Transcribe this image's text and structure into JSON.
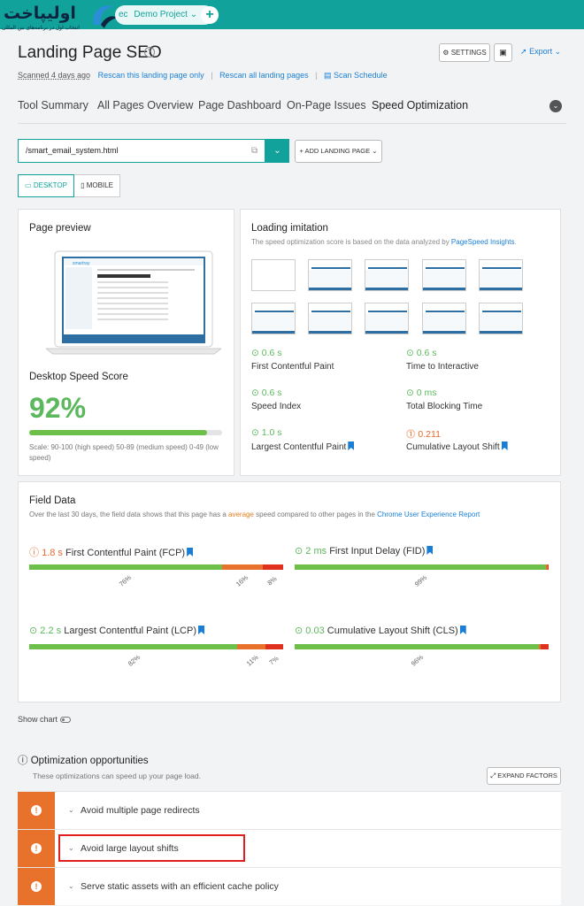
{
  "app": {
    "logo_text": "اولیپاخت",
    "logo_tagline": "انتخاب اول در برنامه‌های بین المللی",
    "project_label": "Demo Project",
    "project_prefix": "ec",
    "add_label": "+"
  },
  "header": {
    "title": "Landing Page SEO",
    "settings_label": "SETTINGS",
    "export_label": "Export",
    "scanned": "Scanned 4 days ago",
    "rescan_this": "Rescan this landing page only",
    "rescan_all": "Rescan all landing pages",
    "scan_schedule": "Scan Schedule"
  },
  "tabs": [
    {
      "label": "Tool Summary",
      "active": false
    },
    {
      "label": "All Pages Overview",
      "active": false
    },
    {
      "label": "Page Dashboard",
      "active": false
    },
    {
      "label": "On-Page Issues",
      "active": false
    },
    {
      "label": "Speed Optimization",
      "active": true
    }
  ],
  "toolbar": {
    "url": "/smart_email_system.html",
    "add_landing_page": "+ ADD LANDING PAGE",
    "desktop": "DESKTOP",
    "mobile": "MOBILE"
  },
  "page_preview": {
    "title": "Page preview",
    "score_label": "Desktop Speed Score",
    "score_value": "92%",
    "score_fraction": 0.92,
    "scale_text": "Scale: 90-100 (high speed) 50-89 (medium speed) 0-49 (low speed)"
  },
  "loading_imitation": {
    "title": "Loading imitation",
    "subtitle": "The speed optimization score is based on the data analyzed by ",
    "subtitle_link": "PageSpeed Insights",
    "subtitle_end": ".",
    "metrics": [
      {
        "value": "0.6 s",
        "label": "First Contentful Paint",
        "status": "good",
        "bookmark": false
      },
      {
        "value": "0.6 s",
        "label": "Time to Interactive",
        "status": "good",
        "bookmark": false
      },
      {
        "value": "0.6 s",
        "label": "Speed Index",
        "status": "good",
        "bookmark": false
      },
      {
        "value": "0 ms",
        "label": "Total Blocking Time",
        "status": "good",
        "bookmark": false
      },
      {
        "value": "1.0 s",
        "label": "Largest Contentful Paint",
        "status": "good",
        "bookmark": true
      },
      {
        "value": "0.211",
        "label": "Cumulative Layout Shift",
        "status": "warn",
        "bookmark": true
      }
    ]
  },
  "field_data": {
    "title": "Field Data",
    "subtitle_pre": "Over the last 30 days, the field data shows that this page has a ",
    "subtitle_avg": "average",
    "subtitle_mid": " speed compared to other pages in the ",
    "subtitle_link": "Chrome User Experience Report",
    "metrics": [
      {
        "value": "1.8 s",
        "label": "First Contentful Paint (FCP)",
        "status": "avg",
        "dist": [
          76,
          16,
          8
        ],
        "dist_labels": [
          "76%",
          "16%",
          "8%"
        ]
      },
      {
        "value": "2 ms",
        "label": "First Input Delay (FID)",
        "status": "good",
        "dist": [
          99,
          0.5,
          0.5
        ],
        "dist_labels": [
          "99%"
        ]
      },
      {
        "value": "2.2 s",
        "label": "Largest Contentful Paint (LCP)",
        "status": "good",
        "dist": [
          82,
          11,
          7
        ],
        "dist_labels": [
          "82%",
          "11%",
          "7%"
        ]
      },
      {
        "value": "0.03",
        "label": "Cumulative Layout Shift (CLS)",
        "status": "good",
        "dist": [
          96,
          1,
          3
        ],
        "dist_labels": [
          "96%"
        ]
      }
    ],
    "colors": {
      "good": "#6cc04a",
      "avg": "#e8712b",
      "poor": "#e0301e"
    }
  },
  "show_chart": "Show chart",
  "opportunities": {
    "title": "Optimization opportunities",
    "subtitle": "These optimizations can speed up your page load.",
    "expand_label": "EXPAND FACTORS",
    "items": [
      {
        "label": "Avoid multiple page redirects"
      },
      {
        "label": "Avoid large layout shifts",
        "highlighted": true
      },
      {
        "label": "Serve static assets with an efficient cache policy"
      }
    ]
  }
}
